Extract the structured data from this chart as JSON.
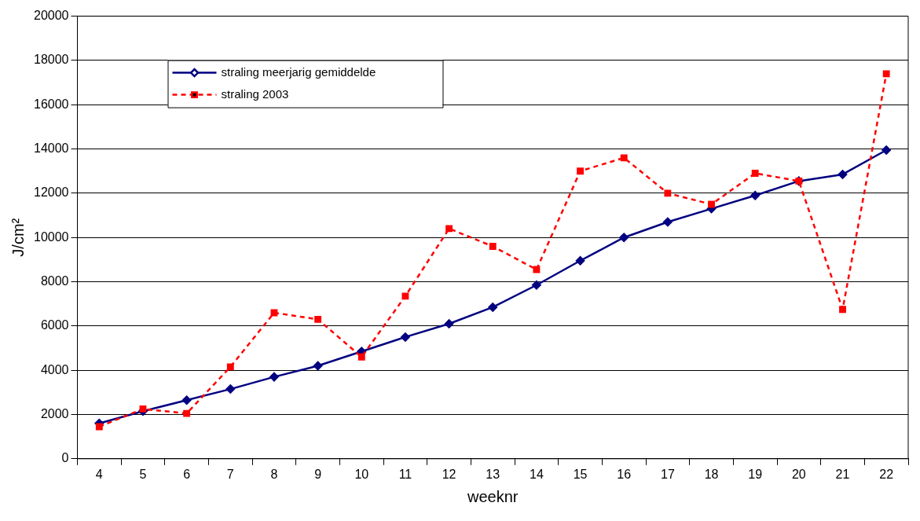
{
  "chart_data": {
    "type": "line",
    "xlabel": "weeknr",
    "ylabel": "J/cm²",
    "categories": [
      "4",
      "5",
      "6",
      "7",
      "8",
      "9",
      "10",
      "11",
      "12",
      "13",
      "14",
      "15",
      "16",
      "17",
      "18",
      "19",
      "20",
      "21",
      "22"
    ],
    "series": [
      {
        "name": "straling meerjarig gemiddelde",
        "color": "#000080",
        "marker": "diamond",
        "line_style": "solid",
        "values": [
          1600,
          2150,
          2650,
          3150,
          3700,
          4200,
          4850,
          5500,
          6100,
          6850,
          7850,
          8950,
          10000,
          10700,
          11300,
          11900,
          12550,
          12850,
          13950
        ]
      },
      {
        "name": "straling 2003",
        "color": "#ff0000",
        "marker": "square",
        "line_style": "dashed",
        "values": [
          1450,
          2250,
          2050,
          4150,
          6600,
          6300,
          4600,
          7350,
          10400,
          9600,
          8550,
          13000,
          13600,
          12000,
          11500,
          12900,
          12550,
          6750,
          17400
        ]
      }
    ],
    "ylim": [
      0,
      20000
    ],
    "yticks": [
      0,
      2000,
      4000,
      6000,
      8000,
      10000,
      12000,
      14000,
      16000,
      18000,
      20000
    ],
    "grid": "y",
    "legend": "top left"
  }
}
